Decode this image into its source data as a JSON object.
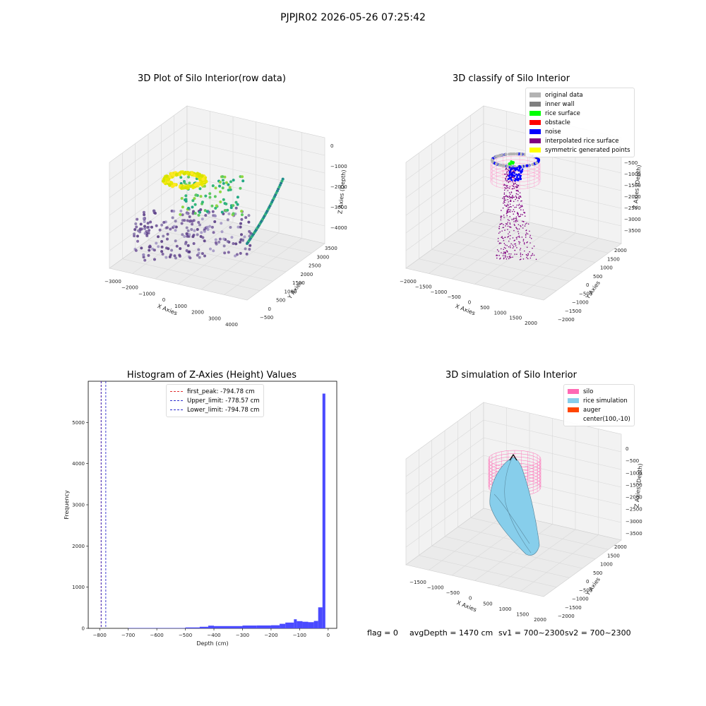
{
  "figure": {
    "suptitle": "PJPJR02 2026-05-26 07:25:42"
  },
  "colors": {
    "grid": "#d9d9d9",
    "pane": "#f2f2f2",
    "hist_bar": "#4a4aff",
    "first_peak": "#e03131",
    "limit": "#2a2acc",
    "silo": "#ff69b4",
    "rice": "#87ceeb",
    "auger": "#ff4500",
    "original": "#b3b3b3",
    "inner_wall": "#808080",
    "rice_surface": "#00ff00",
    "obstacle": "#ff0000",
    "noise": "#0000ff",
    "interp": "#800080",
    "symmetric": "#ffff00"
  },
  "chart_data": [
    {
      "type": "scatter",
      "title": "3D Plot of Silo Interior(row data)",
      "xlabel": "X Axies",
      "ylabel": "Y Axies",
      "zlabel": "Z Axies (Depth)",
      "xticks": [
        "−3000",
        "−2000",
        "−1000",
        "0",
        "1000",
        "2000",
        "3000",
        "4000"
      ],
      "yticks": [
        "−500",
        "0",
        "500",
        "1000",
        "1500",
        "2000",
        "2500",
        "3000",
        "3500"
      ],
      "zticks": [
        "0",
        "−1000",
        "−2000",
        "−3000",
        "−4000"
      ],
      "colormap": "viridis",
      "clusters": [
        {
          "name": "yellow ring",
          "x": 500,
          "y": 2500,
          "z": -1500,
          "color": "#e8e800"
        },
        {
          "name": "green band",
          "x": 1200,
          "y": 2200,
          "z": -2100,
          "color": "#5ec962"
        },
        {
          "name": "teal arc",
          "x": 3400,
          "y": 1500,
          "z": -2800,
          "color": "#21918c"
        },
        {
          "name": "purple floor",
          "x": 0,
          "y": 800,
          "z": -3800,
          "color": "#5d3f8a"
        }
      ]
    },
    {
      "type": "scatter",
      "title": "3D classify of Silo Interior",
      "xlabel": "X Axies",
      "ylabel": "Y Axies",
      "zlabel": "Z Axies (Depth)",
      "xticks": [
        "−2000",
        "−1500",
        "−1000",
        "−500",
        "0",
        "500",
        "1000",
        "1500",
        "2000"
      ],
      "yticks": [
        "−2000",
        "−1500",
        "−1000",
        "−500",
        "0",
        "500",
        "1000",
        "1500",
        "2000"
      ],
      "zticks": [
        "−500",
        "−1000",
        "−1500",
        "−2000",
        "−2500",
        "−3000",
        "−3500"
      ],
      "legend": [
        "original data",
        "inner wall",
        "rice surface",
        "obstacle",
        "noise",
        "interpolated rice surface",
        "symmetric generated points"
      ]
    },
    {
      "type": "bar",
      "title": "Histogram of Z-Axies (Height) Values",
      "xlabel": "Depth (cm)",
      "ylabel": "Frequency",
      "xlim": [
        -840,
        30
      ],
      "ylim": [
        0,
        6000
      ],
      "xticks": [
        -800,
        -700,
        -600,
        -500,
        -400,
        -300,
        -200,
        -100,
        0
      ],
      "yticks": [
        0,
        1000,
        2000,
        3000,
        4000,
        5000
      ],
      "bin_edges": [
        -700,
        -600,
        -500,
        -450,
        -420,
        -400,
        -300,
        -250,
        -200,
        -170,
        -150,
        -120,
        -110,
        -90,
        -70,
        -50,
        -35,
        -20,
        -10,
        0
      ],
      "values": [
        8,
        8,
        22,
        38,
        65,
        55,
        68,
        70,
        75,
        110,
        140,
        220,
        175,
        160,
        150,
        180,
        510,
        5700,
        0
      ],
      "lines": [
        {
          "label": "first_peak: -794.78 cm",
          "x": -794.78,
          "color": "#e03131"
        },
        {
          "label": "Upper_limit: -778.57 cm",
          "x": -778.57,
          "color": "#2a2acc"
        },
        {
          "label": "Lower_limit: -794.78 cm",
          "x": -794.78,
          "color": "#2a2acc"
        }
      ],
      "legend_position": "upper center"
    },
    {
      "type": "surface",
      "title": "3D simulation of Silo Interior",
      "xlabel": "X Axies",
      "ylabel": "Y Axies",
      "zlabel": "Z Axies (Depth)",
      "xticks": [
        "−1500",
        "−1000",
        "−500",
        "0",
        "500",
        "1000",
        "1500",
        "2000"
      ],
      "yticks": [
        "−2000",
        "−1500",
        "−1000",
        "−500",
        "0",
        "500",
        "1000",
        "1500",
        "2000"
      ],
      "zticks": [
        "0",
        "−500",
        "−1000",
        "−1500",
        "−2000",
        "−2500",
        "−3000",
        "−3500"
      ],
      "legend": [
        "silo",
        "rice simulation",
        "auger",
        "center(100,-10)"
      ]
    }
  ],
  "footer": {
    "flag": "flag = 0",
    "avg_depth": "avgDepth = 1470 cm",
    "sv1": "sv1 = 700~2300",
    "sv2": "sv2 = 700~2300"
  }
}
